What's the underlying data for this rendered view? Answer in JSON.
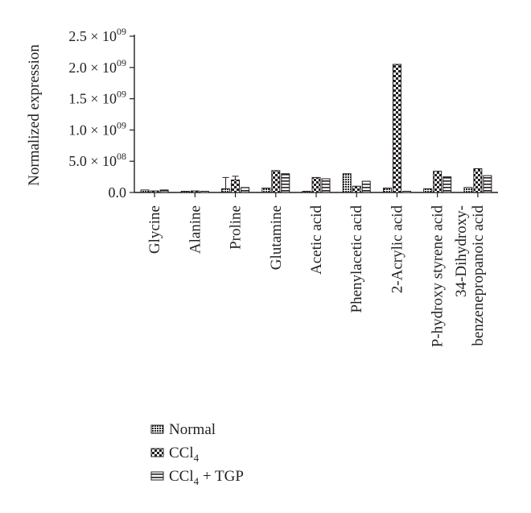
{
  "chart_data": {
    "type": "bar",
    "ylabel": "Normalized expression",
    "xlabel": "",
    "title": "",
    "ylim": [
      0,
      2500000000
    ],
    "yticks": [
      {
        "value": 0,
        "label": "0.0"
      },
      {
        "value": 500000000,
        "base": "5.0 × 10",
        "exp": "08"
      },
      {
        "value": 1000000000,
        "base": "1.0 × 10",
        "exp": "09"
      },
      {
        "value": 1500000000,
        "base": "1.5 × 10",
        "exp": "09"
      },
      {
        "value": 2000000000,
        "base": "2.0 × 10",
        "exp": "09"
      },
      {
        "value": 2500000000,
        "base": "2.5 × 10",
        "exp": "09"
      }
    ],
    "categories": [
      [
        "Glycine"
      ],
      [
        "Alanine"
      ],
      [
        "Proline"
      ],
      [
        "Glutamine"
      ],
      [
        "Acetic acid"
      ],
      [
        "Phenylacetic acid"
      ],
      [
        "2-Acrylic acid"
      ],
      [
        "P-hydroxy styrene acid"
      ],
      [
        "34-Dihydroxy-",
        "benzenepropanoic acid"
      ]
    ],
    "series": [
      {
        "name": "Normal",
        "pattern": "dense",
        "values": [
          40000000,
          10000000,
          60000000,
          70000000,
          5000000,
          300000000,
          70000000,
          60000000,
          80000000
        ],
        "errors": [
          0,
          0,
          180000000,
          0,
          0,
          0,
          0,
          0,
          0
        ]
      },
      {
        "name": "CCl",
        "subscript": "4",
        "pattern": "checker",
        "values": [
          25000000,
          25000000,
          200000000,
          350000000,
          240000000,
          100000000,
          2050000000,
          340000000,
          380000000
        ],
        "errors": [
          0,
          0,
          60000000,
          0,
          0,
          0,
          0,
          0,
          0
        ]
      },
      {
        "name": "CCl",
        "subscript": "4",
        "suffix": " + TGP",
        "pattern": "hstripe",
        "values": [
          40000000,
          10000000,
          80000000,
          300000000,
          220000000,
          180000000,
          5000000,
          250000000,
          270000000
        ],
        "errors": [
          0,
          0,
          0,
          0,
          0,
          0,
          0,
          0,
          0
        ]
      }
    ],
    "grid": false,
    "legend_position": "bottom-left"
  }
}
